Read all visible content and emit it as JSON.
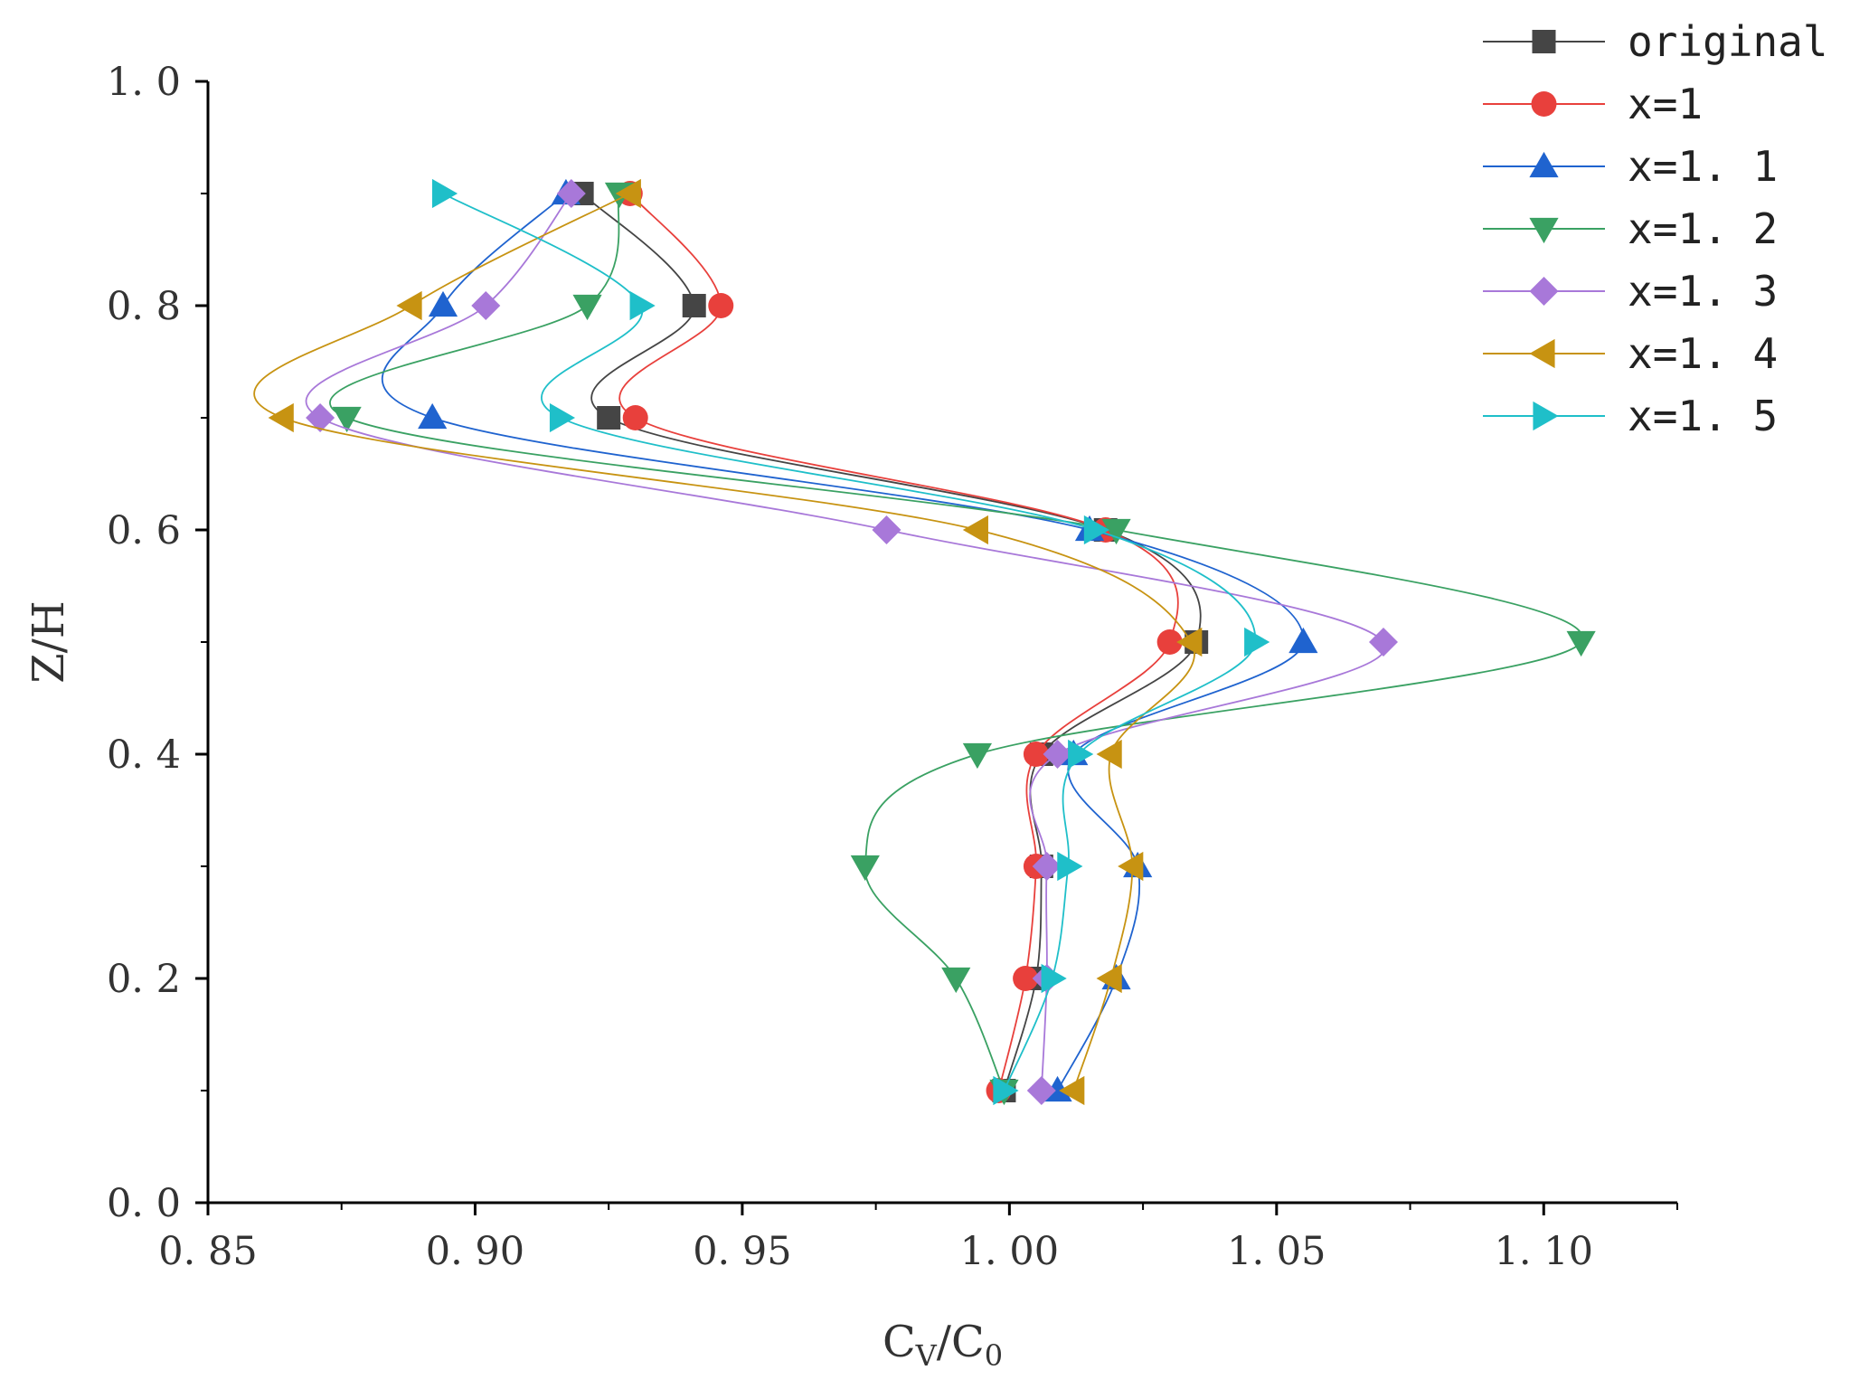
{
  "chart_data": {
    "type": "line",
    "title": "",
    "xlabel": "C_V/C_0",
    "xlabel_parts": {
      "main1": "C",
      "sub1": "V",
      "slash": "/",
      "main2": "C",
      "sub2": "0"
    },
    "ylabel": "Z/H",
    "xlim": [
      0.85,
      1.125
    ],
    "ylim": [
      0.0,
      1.0
    ],
    "x_ticks": [
      {
        "value": 0.85,
        "label": "0. 85"
      },
      {
        "value": 0.9,
        "label": "0. 90"
      },
      {
        "value": 0.95,
        "label": "0. 95"
      },
      {
        "value": 1.0,
        "label": "1. 00"
      },
      {
        "value": 1.05,
        "label": "1. 05"
      },
      {
        "value": 1.1,
        "label": "1. 10"
      }
    ],
    "y_ticks": [
      {
        "value": 0.0,
        "label": "0. 0"
      },
      {
        "value": 0.2,
        "label": "0. 2"
      },
      {
        "value": 0.4,
        "label": "0. 4"
      },
      {
        "value": 0.6,
        "label": "0. 6"
      },
      {
        "value": 0.8,
        "label": "0. 8"
      },
      {
        "value": 1.0,
        "label": "1. 0"
      }
    ],
    "grid": false,
    "legend_position": "top-right, outside plot area",
    "y": [
      0.1,
      0.2,
      0.3,
      0.4,
      0.5,
      0.6,
      0.7,
      0.8,
      0.9
    ],
    "series": [
      {
        "name": "original",
        "label": "original",
        "color": "#454545",
        "marker": "square",
        "x": [
          0.999,
          1.005,
          1.006,
          1.006,
          1.035,
          1.018,
          0.925,
          0.941,
          0.92
        ]
      },
      {
        "name": "x=1",
        "label": "x=1",
        "color": "#e8403c",
        "marker": "circle",
        "x": [
          0.998,
          1.003,
          1.005,
          1.005,
          1.03,
          1.018,
          0.93,
          0.946,
          0.929
        ]
      },
      {
        "name": "x=1.1",
        "label": "x=1. 1",
        "color": "#1f63cf",
        "marker": "triangle-up",
        "x": [
          1.009,
          1.02,
          1.024,
          1.012,
          1.055,
          1.015,
          0.892,
          0.894,
          0.917
        ]
      },
      {
        "name": "x=1.2",
        "label": "x=1. 2",
        "color": "#3aa163",
        "marker": "triangle-down",
        "x": [
          0.999,
          0.99,
          0.973,
          0.994,
          1.107,
          1.02,
          0.876,
          0.921,
          0.927
        ]
      },
      {
        "name": "x=1.3",
        "label": "x=1. 3",
        "color": "#a878d9",
        "marker": "diamond",
        "x": [
          1.006,
          1.007,
          1.007,
          1.009,
          1.07,
          0.977,
          0.871,
          0.902,
          0.918
        ]
      },
      {
        "name": "x=1.4",
        "label": "x=1. 4",
        "color": "#c79312",
        "marker": "triangle-left",
        "x": [
          1.012,
          1.019,
          1.023,
          1.019,
          1.034,
          0.994,
          0.864,
          0.888,
          0.929
        ]
      },
      {
        "name": "x=1.5",
        "label": "x=1. 5",
        "color": "#1fbfc9",
        "marker": "triangle-right",
        "x": [
          0.999,
          1.008,
          1.011,
          1.013,
          1.046,
          1.016,
          0.916,
          0.931,
          0.894
        ]
      }
    ]
  }
}
